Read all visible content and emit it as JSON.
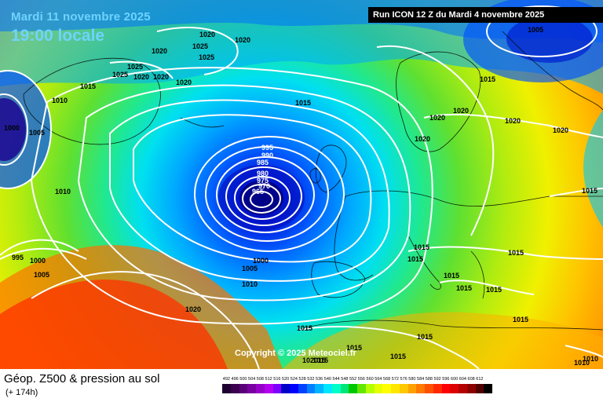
{
  "header": {
    "date": "Mardi 11 novembre 2025",
    "time": "19:00 locale",
    "run_info": "Run ICON 12 Z du Mardi 4 novembre 2025"
  },
  "copyright": "Copyright © 2025 Meteociel.fr",
  "footer": {
    "title": "Géop. Z500 & pression au sol",
    "subtitle": "(+ 174h)"
  },
  "isobar_labels": [
    {
      "id": "lbl-1",
      "text": "1020"
    },
    {
      "id": "lbl-2",
      "text": "1020"
    },
    {
      "id": "lbl-3",
      "text": "1020"
    },
    {
      "id": "lbl-4",
      "text": "1025"
    },
    {
      "id": "lbl-5",
      "text": "1025"
    },
    {
      "id": "lbl-6",
      "text": "1025"
    },
    {
      "id": "lbl-7",
      "text": "1025"
    },
    {
      "id": "lbl-8",
      "text": "1020"
    },
    {
      "id": "lbl-9",
      "text": "1020"
    },
    {
      "id": "lbl-10",
      "text": "1020"
    },
    {
      "id": "lbl-11",
      "text": "1015"
    },
    {
      "id": "lbl-12",
      "text": "1010"
    },
    {
      "id": "lbl-13",
      "text": "1000"
    },
    {
      "id": "lbl-14",
      "text": "1005"
    },
    {
      "id": "lbl-15",
      "text": "1015"
    },
    {
      "id": "lbl-16",
      "text": "1005"
    },
    {
      "id": "lbl-17",
      "text": "1015"
    },
    {
      "id": "lbl-18",
      "text": "1020"
    },
    {
      "id": "lbl-19",
      "text": "1020"
    },
    {
      "id": "lbl-20",
      "text": "1020"
    },
    {
      "id": "lbl-21",
      "text": "1020"
    },
    {
      "id": "lbl-22",
      "text": "1020"
    },
    {
      "id": "lbl-23",
      "text": "995"
    },
    {
      "id": "lbl-24",
      "text": "990"
    },
    {
      "id": "lbl-25",
      "text": "985"
    },
    {
      "id": "lbl-26",
      "text": "980"
    },
    {
      "id": "lbl-27",
      "text": "975"
    },
    {
      "id": "lbl-28",
      "text": "970"
    },
    {
      "id": "lbl-29",
      "text": "965"
    },
    {
      "id": "lbl-30",
      "text": "1010"
    },
    {
      "id": "lbl-31",
      "text": "995"
    },
    {
      "id": "lbl-32",
      "text": "1000"
    },
    {
      "id": "lbl-33",
      "text": "1005"
    },
    {
      "id": "lbl-34",
      "text": "1000"
    },
    {
      "id": "lbl-35",
      "text": "1005"
    },
    {
      "id": "lbl-36",
      "text": "1010"
    },
    {
      "id": "lbl-37",
      "text": "1015"
    },
    {
      "id": "lbl-38",
      "text": "1015"
    },
    {
      "id": "lbl-39",
      "text": "1015"
    },
    {
      "id": "lbl-40",
      "text": "1015"
    },
    {
      "id": "lbl-41",
      "text": "1015"
    },
    {
      "id": "lbl-42",
      "text": "1020"
    },
    {
      "id": "lbl-43",
      "text": "1015"
    },
    {
      "id": "lbl-44",
      "text": "1015"
    },
    {
      "id": "lbl-45",
      "text": "1015"
    },
    {
      "id": "lbl-46",
      "text": "1015"
    },
    {
      "id": "lbl-47",
      "text": "1015"
    },
    {
      "id": "lbl-48",
      "text": "1015"
    },
    {
      "id": "lbl-49",
      "text": "102015"
    },
    {
      "id": "lbl-50",
      "text": "1015"
    },
    {
      "id": "lbl-51",
      "text": "1010"
    },
    {
      "id": "lbl-52",
      "text": "1015"
    },
    {
      "id": "lbl-53",
      "text": "1010"
    }
  ],
  "color_scale": [
    {
      "label": "492",
      "color": "#1e0030"
    },
    {
      "label": "496",
      "color": "#3c0050"
    },
    {
      "label": "500",
      "color": "#5a0078"
    },
    {
      "label": "504",
      "color": "#7800a0"
    },
    {
      "label": "508",
      "color": "#9600c8"
    },
    {
      "label": "512",
      "color": "#b400f0"
    },
    {
      "label": "516",
      "color": "#8000ff"
    },
    {
      "label": "520",
      "color": "#0000c8"
    },
    {
      "label": "524",
      "color": "#0000ff"
    },
    {
      "label": "528",
      "color": "#0040ff"
    },
    {
      "label": "532",
      "color": "#0080ff"
    },
    {
      "label": "536",
      "color": "#00b4ff"
    },
    {
      "label": "540",
      "color": "#00e6ff"
    },
    {
      "label": "544",
      "color": "#00ffc8"
    },
    {
      "label": "548",
      "color": "#00e678"
    },
    {
      "label": "552",
      "color": "#00c800"
    },
    {
      "label": "556",
      "color": "#64e600"
    },
    {
      "label": "560",
      "color": "#b4ff00"
    },
    {
      "label": "564",
      "color": "#e6ff00"
    },
    {
      "label": "568",
      "color": "#ffff00"
    },
    {
      "label": "572",
      "color": "#ffe600"
    },
    {
      "label": "576",
      "color": "#ffc800"
    },
    {
      "label": "580",
      "color": "#ffa000"
    },
    {
      "label": "584",
      "color": "#ff7800"
    },
    {
      "label": "588",
      "color": "#ff5000"
    },
    {
      "label": "592",
      "color": "#ff2800"
    },
    {
      "label": "596",
      "color": "#ff0000"
    },
    {
      "label": "600",
      "color": "#dc0000"
    },
    {
      "label": "604",
      "color": "#b40000"
    },
    {
      "label": "608",
      "color": "#8c0000"
    },
    {
      "label": "612",
      "color": "#500000"
    },
    {
      "label": "",
      "color": "#000000"
    }
  ]
}
